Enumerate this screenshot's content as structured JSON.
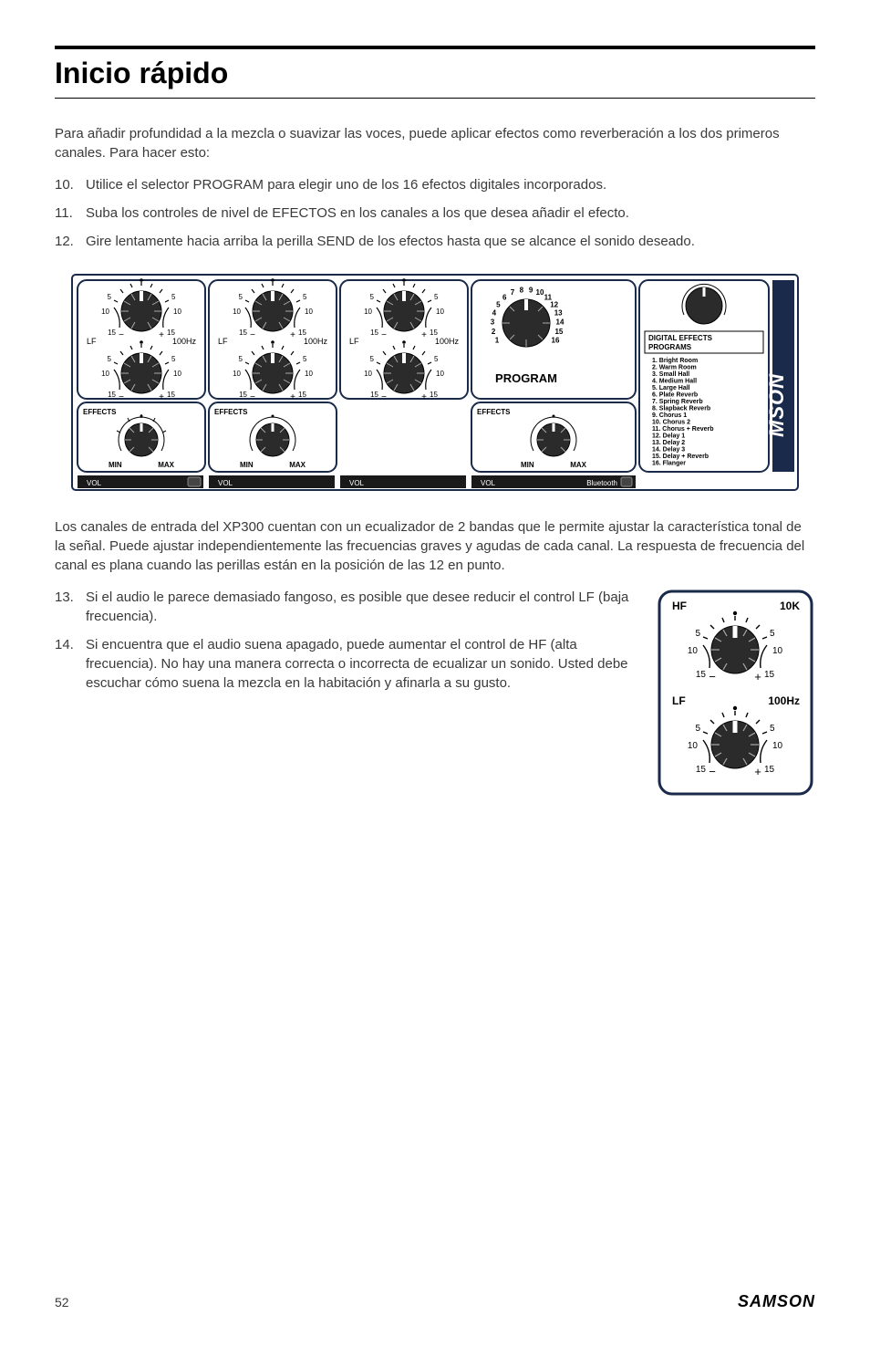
{
  "title": "Inicio rápido",
  "intro": "Para añadir profundidad a la mezcla o suavizar las voces, puede aplicar efectos como reverberación a los dos primeros canales. Para hacer esto:",
  "steps1": [
    {
      "num": "10.",
      "text": "Utilice el selector PROGRAM para elegir uno de los 16 efectos digitales incorporados."
    },
    {
      "num": "11.",
      "text": "Suba los controles de nivel de EFECTOS en los canales a los que desea añadir el efecto."
    },
    {
      "num": "12.",
      "text": "Gire lentamente hacia arriba la perilla SEND de los efectos hasta que se alcance el sonido deseado."
    }
  ],
  "para2": "Los canales de entrada del XP300 cuentan con un ecualizador de 2 bandas que le permite ajustar la característica tonal de la señal. Puede ajustar independientemente las frecuencias graves y agudas de cada canal. La respuesta de frecuencia del canal es plana cuando las perillas están en la posición de las 12 en punto.",
  "steps2": [
    {
      "num": "13.",
      "text": "Si el audio le parece demasiado fangoso, es posible que desee reducir el control LF (baja frecuencia)."
    },
    {
      "num": "14.",
      "text": "Si encuentra que el audio suena apagado, puede aumentar el control de HF (alta frecuencia). No hay una manera correcta o incorrecta de ecualizar un sonido. Usted debe escuchar cómo suena la mezcla en la habitación y afinarla a su gusto."
    }
  ],
  "pageNum": "52",
  "brand": "SAMSON",
  "diagram1": {
    "labels": {
      "lf": "LF",
      "hf": "HF",
      "freq10k": "10K",
      "freq100": "100Hz",
      "min": "MIN",
      "max": "MAX",
      "effects": "EFFECTS",
      "program": "PROGRAM",
      "digfx": "DIGITAL EFFECTS",
      "programs": "PROGRAMS",
      "vol": "VOL",
      "bluetooth": "Bluetooth"
    },
    "dial_marks": [
      "5",
      "10",
      "15",
      "5",
      "10",
      "15"
    ],
    "program_nums": [
      "1",
      "2",
      "3",
      "4",
      "5",
      "6",
      "7",
      "8",
      "9",
      "10",
      "11",
      "12",
      "13",
      "14",
      "15",
      "16"
    ],
    "fx_list": [
      "1.  Bright Room",
      "2.  Warm Room",
      "3.  Small Hall",
      "4.  Medium Hall",
      "5.  Large Hall",
      "6.  Plate Reverb",
      "7.  Spring Reverb",
      "8.  Slapback Reverb",
      "9.  Chorus 1",
      "10. Chorus 2",
      "11. Chorus + Reverb",
      "12. Delay 1",
      "13. Delay 2",
      "14. Delay 3",
      "15. Delay + Reverb",
      "16. Flanger"
    ],
    "colors": {
      "stroke": "#000000",
      "fill_bg": "#ffffff",
      "knob_fill": "#2b2b2b",
      "knob_ridge": "#888888",
      "pointer": "#ffffff",
      "panel_fill": "#f0f0f0",
      "panel_stroke": "#1a2a4a",
      "vol_bar": "#1a1a1a",
      "samson_bar": "#1a2a4a"
    }
  },
  "diagram2": {
    "labels": {
      "hf": "HF",
      "lf": "LF",
      "freq10k": "10K",
      "freq100": "100Hz"
    },
    "dial_marks": [
      "5",
      "10",
      "15"
    ],
    "colors": {
      "stroke": "#000000",
      "knob_fill": "#2b2b2b",
      "knob_ridge": "#888888",
      "panel_stroke": "#1a2a4a"
    }
  }
}
